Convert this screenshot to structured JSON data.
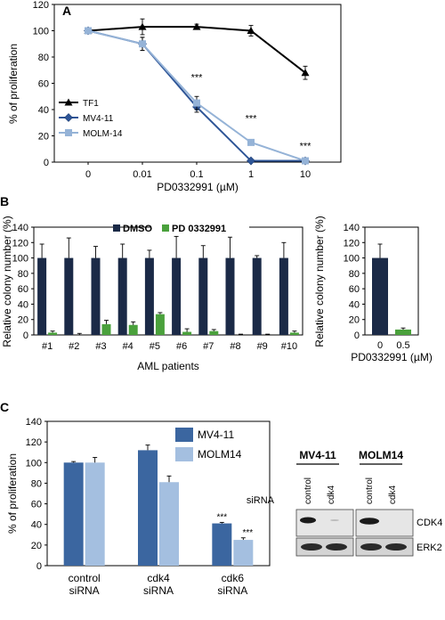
{
  "panels": {
    "a": "A",
    "b": "B",
    "c": "C"
  },
  "chart_data": [
    {
      "type": "line",
      "panel": "A",
      "xlabel": "PD0332991 (µM)",
      "ylabel": "% of proliferation",
      "x_ticks": [
        "0",
        "0.01",
        "0.1",
        "1",
        "10"
      ],
      "ylim": [
        0,
        120
      ],
      "y_ticks": [
        0,
        20,
        40,
        60,
        80,
        100,
        120
      ],
      "legend_position": "bottom-left",
      "series": [
        {
          "name": "TF1",
          "color": "#000000",
          "marker": "triangle",
          "values": [
            100,
            103,
            103,
            100,
            68
          ],
          "errors": [
            0,
            6,
            2,
            4,
            5
          ]
        },
        {
          "name": "MV4-11",
          "color": "#2e5597",
          "marker": "diamond",
          "values": [
            100,
            90,
            42,
            1,
            1
          ],
          "errors": [
            0,
            5,
            4,
            1,
            1
          ]
        },
        {
          "name": "MOLM-14",
          "color": "#95b3d7",
          "marker": "square",
          "values": [
            100,
            90,
            45,
            15,
            1
          ],
          "errors": [
            0,
            5,
            5,
            1,
            1
          ]
        }
      ],
      "annotations": [
        {
          "x_index": 2,
          "y": 62,
          "text": "***"
        },
        {
          "x_index": 3,
          "y": 31,
          "text": "***"
        },
        {
          "x_index": 4,
          "y": 10,
          "text": "***"
        }
      ]
    },
    {
      "type": "bar",
      "panel": "B-left",
      "xlabel": "AML patients",
      "ylabel": "Relative colony number (%)",
      "categories": [
        "#1",
        "#2",
        "#3",
        "#4",
        "#5",
        "#6",
        "#7",
        "#8",
        "#9",
        "#10"
      ],
      "ylim": [
        0,
        140
      ],
      "y_ticks": [
        0,
        20,
        40,
        60,
        80,
        100,
        120,
        140
      ],
      "legend_position": "top",
      "series": [
        {
          "name": "DMSO",
          "color": "#1b2a47",
          "values": [
            100,
            100,
            100,
            100,
            100,
            100,
            100,
            100,
            100,
            100
          ],
          "errors": [
            18,
            26,
            15,
            18,
            10,
            28,
            16,
            27,
            3,
            20
          ]
        },
        {
          "name": "PD 0332991",
          "color": "#4aa13c",
          "values": [
            3,
            0,
            14,
            13,
            27,
            4,
            5,
            0,
            0,
            3
          ],
          "errors": [
            2,
            2,
            5,
            4,
            2,
            4,
            2,
            1,
            1,
            2
          ]
        }
      ]
    },
    {
      "type": "bar",
      "panel": "B-right",
      "xlabel": "PD0332991 (µM)",
      "ylabel": "Relative colony number (%)",
      "categories": [
        "0",
        "0.5"
      ],
      "ylim": [
        0,
        140
      ],
      "y_ticks": [
        0,
        20,
        40,
        60,
        80,
        100,
        120,
        140
      ],
      "values": [
        100,
        7
      ],
      "errors": [
        18,
        2
      ],
      "colors": [
        "#1b2a47",
        "#4aa13c"
      ]
    },
    {
      "type": "bar",
      "panel": "C",
      "ylabel": "% of proliferation",
      "categories": [
        "control\nsiRNA",
        "cdk4\nsiRNA",
        "cdk6\nsiRNA"
      ],
      "ylim": [
        0,
        140
      ],
      "y_ticks": [
        0,
        20,
        40,
        60,
        80,
        100,
        120,
        140
      ],
      "legend_position": "top-right",
      "series": [
        {
          "name": "MV4-11",
          "color": "#3b66a0",
          "values": [
            100,
            112,
            41
          ],
          "errors": [
            1,
            5,
            1
          ],
          "stars": [
            "",
            "",
            "***"
          ]
        },
        {
          "name": "MOLM14",
          "color": "#a4bfe0",
          "values": [
            100,
            81,
            25
          ],
          "errors": [
            5,
            6,
            2
          ],
          "stars": [
            "",
            "",
            "***"
          ]
        }
      ]
    }
  ],
  "western_blot": {
    "cell_lines": [
      "MV4-11",
      "MOLM14"
    ],
    "row_label": "siRNA",
    "lanes": [
      "control",
      "cdk4"
    ],
    "proteins": [
      "CDK4",
      "ERK2"
    ]
  }
}
